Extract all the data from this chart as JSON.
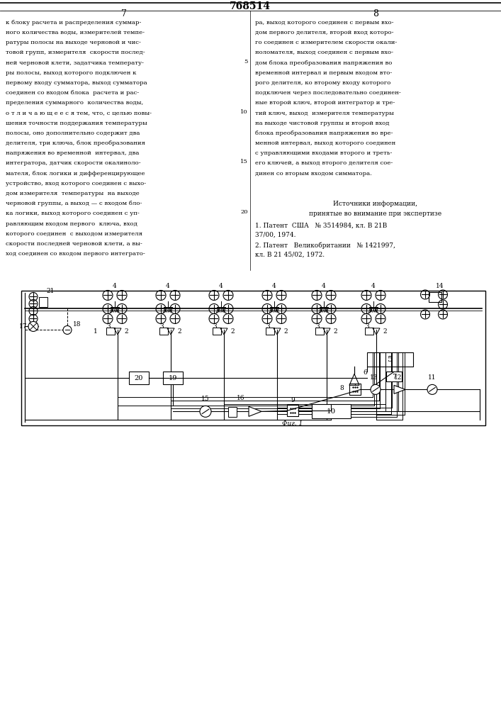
{
  "title": "768514",
  "page_left": "7",
  "page_right": "8",
  "fig_label": "Фиг. 1",
  "background": "#ffffff",
  "line_color": "#000000",
  "text_color": "#000000",
  "left_col_text": "к блоку расчета и распределения суммар-\nного количества воды, измерителей темпе-\nратуры полосы на выходе черновой и чис-\nтовой групп, измерителя  скорости послед-\nней черновой клети, задатчика температу-\nры полосы, выход которого подключен к\nпервому входу сумматора, выход сумматора\nсоединен со входом блока  расчета и рас-\nпределения суммарного  количества воды,\nо т л и ч а ю щ е е с я тем, что, с целью повы-\nшения точности поддержания температуры\nполосы, оно дополнительно содержит два\nделителя, три ключа, блок преобразования\nнапряжения во временной  интервал, два\nинтегратора, датчик скорости окалиноло-\nмателя, блок логики и дифференцирующее\nустройство, вход которого соединен с выхо-\nдом измерителя  температуры  на выходе\nчерновой группы, а выход — с входом бло-\nка логики, выход которого соединен с уп- 20\nравляющим входом первого  ключа, вход\nкоторого соединен  с выходом измерителя\nскорости последней черновой клети, а вы-\nход соединен со входом первого интеграто-",
  "right_col_text": "ра, выход которого соединен с первым вхо-\nдом первого делителя, второй вход которо-\nго соединен с измерителем скорости окали-\nноломателя, выход соединен с первым вхо- 5\nдом блока преобразования напряжения во\nвременной интервал и первым входом вто-\nрого делителя, ко второму входу которого\nподключен через последовательно соединен-\nные второй ключ, второй интегратор и тре-\nтий ключ, выход  измерителя температуры 10\nна выходе чистовой группы и второй вход\nблока преобразования напряжения во вре-\nменной интервал, выход которого соединен\nс управляющими входами второго и треть-\nего ключей, а выход второго делителя сое- 15\nдинен со вторым входом симматора."
}
